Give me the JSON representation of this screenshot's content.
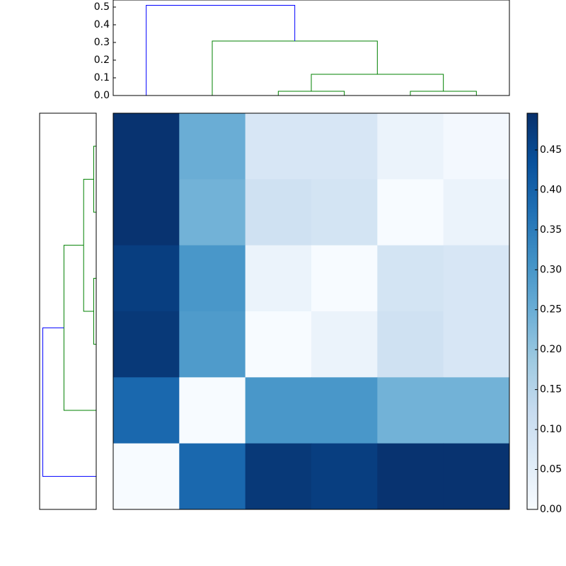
{
  "chart_data": {
    "type": "clustered_heatmap",
    "colormap": "Blues",
    "clim": [
      0,
      0.496
    ],
    "matrix": [
      [
        0.49,
        0.25,
        0.08,
        0.08,
        0.03,
        0.01
      ],
      [
        0.49,
        0.24,
        0.1,
        0.09,
        0.0,
        0.03
      ],
      [
        0.47,
        0.3,
        0.03,
        0.0,
        0.09,
        0.08
      ],
      [
        0.48,
        0.29,
        0.0,
        0.03,
        0.1,
        0.08
      ],
      [
        0.39,
        0.0,
        0.3,
        0.3,
        0.24,
        0.24
      ],
      [
        0.0,
        0.39,
        0.48,
        0.47,
        0.49,
        0.49
      ]
    ],
    "colorbar_ticks": [
      {
        "value": 0,
        "label": "0.00"
      },
      {
        "value": 0.05,
        "label": "0.05"
      },
      {
        "value": 0.1,
        "label": "0.10"
      },
      {
        "value": 0.15,
        "label": "0.15"
      },
      {
        "value": 0.2,
        "label": "0.20"
      },
      {
        "value": 0.25,
        "label": "0.25"
      },
      {
        "value": 0.3,
        "label": "0.30"
      },
      {
        "value": 0.35,
        "label": "0.35"
      },
      {
        "value": 0.4,
        "label": "0.40"
      },
      {
        "value": 0.45,
        "label": "0.45"
      }
    ],
    "dendrogram_xlim": [
      0,
      60
    ],
    "dendrogram_ylim": [
      0,
      0.54
    ],
    "top_yticks": [
      {
        "value": 0,
        "label": "0.0"
      },
      0.1,
      0.2,
      0.3,
      0.4,
      0.5
    ],
    "top_links": [
      {
        "x": [
          25,
          25,
          35,
          35
        ],
        "d": [
          0,
          0.024,
          0.024,
          0
        ],
        "color": "#008000"
      },
      {
        "x": [
          45,
          45,
          55,
          55
        ],
        "d": [
          0,
          0.024,
          0.024,
          0
        ],
        "color": "#008000"
      },
      {
        "x": [
          30,
          30,
          50,
          50
        ],
        "d": [
          0.024,
          0.12,
          0.12,
          0.024
        ],
        "color": "#008000"
      },
      {
        "x": [
          15,
          15,
          40,
          40
        ],
        "d": [
          0,
          0.308,
          0.308,
          0.12
        ],
        "color": "#008000"
      },
      {
        "x": [
          5,
          5,
          27.5,
          27.5
        ],
        "d": [
          0,
          0.51,
          0.51,
          0.308
        ],
        "color": "#0000ff"
      }
    ],
    "left_links": [
      {
        "x": [
          5,
          5,
          15,
          15
        ],
        "d": [
          0,
          0.024,
          0.024,
          0
        ],
        "color": "#008000"
      },
      {
        "x": [
          25,
          25,
          35,
          35
        ],
        "d": [
          0,
          0.024,
          0.024,
          0
        ],
        "color": "#008000"
      },
      {
        "x": [
          10,
          10,
          30,
          30
        ],
        "d": [
          0.024,
          0.12,
          0.12,
          0.024
        ],
        "color": "#008000"
      },
      {
        "x": [
          20,
          20,
          45,
          45
        ],
        "d": [
          0.12,
          0.308,
          0.308,
          0
        ],
        "color": "#008000"
      },
      {
        "x": [
          32.5,
          32.5,
          55,
          55
        ],
        "d": [
          0.308,
          0.51,
          0.51,
          0
        ],
        "color": "#0000ff"
      }
    ]
  }
}
